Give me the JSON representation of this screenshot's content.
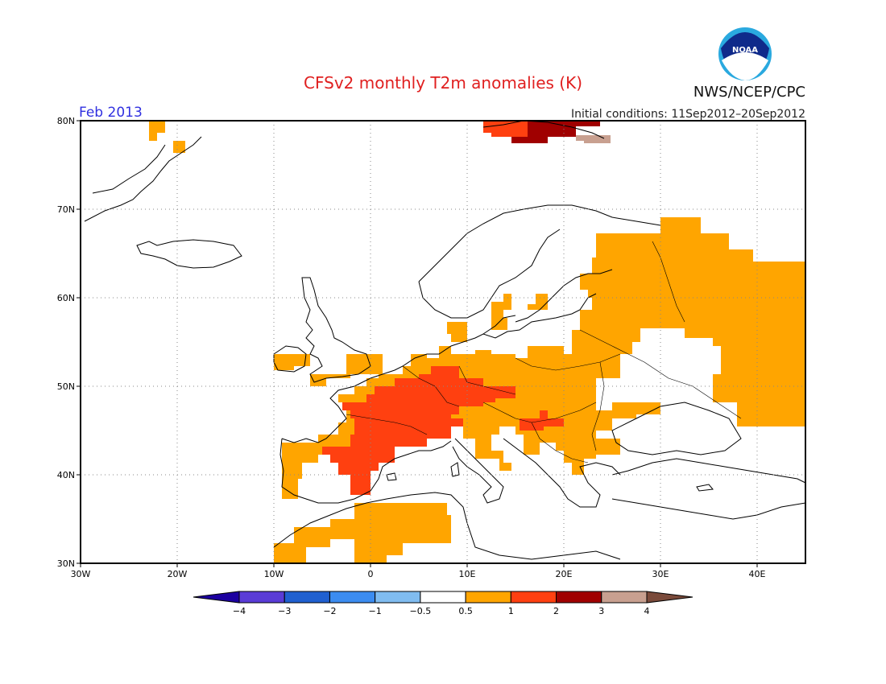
{
  "title": "CFSv2 monthly T2m anomalies (K)",
  "valid_month": "Feb 2013",
  "agency": "NWS/NCEP/CPC",
  "logo_text": "NOAA",
  "initial_conditions": "Initial conditions: 11Sep2012–20Sep2012",
  "colors": {
    "title": "#e02020",
    "month": "#3030e0",
    "pos_0_5_1": "#ffa500",
    "pos_1_2": "#ff4010",
    "pos_2_3": "#a00000",
    "pos_3_4": "#c8a090"
  },
  "map": {
    "lon_range": [
      -30,
      45
    ],
    "lat_range": [
      30,
      80
    ],
    "lon_ticks": [
      "30W",
      "20W",
      "10W",
      "0",
      "10E",
      "20E",
      "30E",
      "40E"
    ],
    "lat_ticks": [
      "80N",
      "70N",
      "60N",
      "50N",
      "40N",
      "30N"
    ]
  },
  "anomaly_regions": [
    {
      "level": "0.5-1",
      "lon": [
        -10,
        45
      ],
      "lat": [
        34,
        66
      ],
      "description": "orange"
    },
    {
      "level": "1-2",
      "lon": [
        -5,
        14
      ],
      "lat": [
        37,
        51
      ]
    },
    {
      "level": "2-3",
      "lon": [
        16,
        22
      ],
      "lat": [
        78,
        81
      ]
    }
  ],
  "colorbar": {
    "labels": [
      "−4",
      "−3",
      "−2",
      "−1",
      "−0.5",
      "0.5",
      "1",
      "2",
      "3",
      "4"
    ],
    "colors": [
      "#1c00a0",
      "#5a3cd6",
      "#2060d0",
      "#3c8cf0",
      "#80bcf0",
      "#ffffff",
      "#ffa500",
      "#ff4010",
      "#a00000",
      "#c8a090",
      "#7a4a3a"
    ]
  }
}
